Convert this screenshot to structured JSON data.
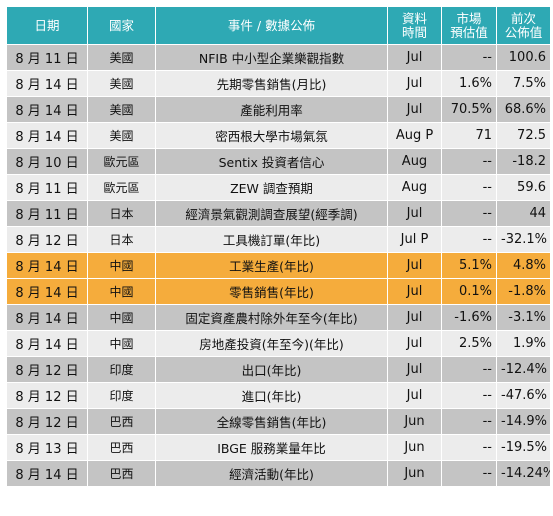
{
  "header": {
    "date": "日期",
    "country": "國家",
    "event": "事件 / 數據公佈",
    "time_l1": "資料",
    "time_l2": "時間",
    "est_l1": "市場",
    "est_l2": "預估值",
    "prev_l1": "前次",
    "prev_l2": "公佈值"
  },
  "colors": {
    "header_bg": "#2ea9b4",
    "row_gray": "#c4c4c4",
    "row_light": "#ececec",
    "row_highlight": "#f5ac3c"
  },
  "rows": [
    {
      "date": "8 月 11 日",
      "country": "美國",
      "event": "NFIB  中小型企業樂觀指數",
      "time": "Jul",
      "estimate": "--",
      "previous": "100.6",
      "style": "gray"
    },
    {
      "date": "8 月 14 日",
      "country": "美國",
      "event": "先期零售銷售(月比)",
      "time": "Jul",
      "estimate": "1.6%",
      "previous": "7.5%",
      "style": "light"
    },
    {
      "date": "8 月 14 日",
      "country": "美國",
      "event": "產能利用率",
      "time": "Jul",
      "estimate": "70.5%",
      "previous": "68.6%",
      "style": "gray"
    },
    {
      "date": "8 月 14 日",
      "country": "美國",
      "event": "密西根大學市場氣氛",
      "time": "Aug P",
      "estimate": "71",
      "previous": "72.5",
      "style": "light"
    },
    {
      "date": "8 月 10 日",
      "country": "歐元區",
      "event": "Sentix 投資者信心",
      "time": "Aug",
      "estimate": "--",
      "previous": "-18.2",
      "style": "gray"
    },
    {
      "date": "8 月 11 日",
      "country": "歐元區",
      "event": "ZEW 調查預期",
      "time": "Aug",
      "estimate": "--",
      "previous": "59.6",
      "style": "light"
    },
    {
      "date": "8 月 11 日",
      "country": "日本",
      "event": "經濟景氣觀測調查展望(經季調)",
      "time": "Jul",
      "estimate": "--",
      "previous": "44",
      "style": "gray"
    },
    {
      "date": "8 月 12 日",
      "country": "日本",
      "event": "工具機訂單(年比)",
      "time": "Jul P",
      "estimate": "--",
      "previous": "-32.1%",
      "style": "light"
    },
    {
      "date": "8 月 14 日",
      "country": "中國",
      "event": "工業生產(年比)",
      "time": "Jul",
      "estimate": "5.1%",
      "previous": "4.8%",
      "style": "hl"
    },
    {
      "date": "8 月 14 日",
      "country": "中國",
      "event": "零售銷售(年比)",
      "time": "Jul",
      "estimate": "0.1%",
      "previous": "-1.8%",
      "style": "hl"
    },
    {
      "date": "8 月 14 日",
      "country": "中國",
      "event": "固定資產農村除外年至今(年比)",
      "time": "Jul",
      "estimate": "-1.6%",
      "previous": "-3.1%",
      "style": "gray"
    },
    {
      "date": "8 月 14 日",
      "country": "中國",
      "event": "房地產投資(年至今)(年比)",
      "time": "Jul",
      "estimate": "2.5%",
      "previous": "1.9%",
      "style": "light"
    },
    {
      "date": "8 月 12 日",
      "country": "印度",
      "event": "出口(年比)",
      "time": "Jul",
      "estimate": "--",
      "previous": "-12.4%",
      "style": "gray"
    },
    {
      "date": "8 月 12 日",
      "country": "印度",
      "event": "進口(年比)",
      "time": "Jul",
      "estimate": "--",
      "previous": "-47.6%",
      "style": "light"
    },
    {
      "date": "8 月 12 日",
      "country": "巴西",
      "event": "全線零售銷售(年比)",
      "time": "Jun",
      "estimate": "--",
      "previous": "-14.9%",
      "style": "gray"
    },
    {
      "date": "8 月 13 日",
      "country": "巴西",
      "event": "IBGE 服務業量年比",
      "time": "Jun",
      "estimate": "--",
      "previous": "-19.5%",
      "style": "light"
    },
    {
      "date": "8 月 14 日",
      "country": "巴西",
      "event": "經濟活動(年比)",
      "time": "Jun",
      "estimate": "--",
      "previous": "-14.24%",
      "style": "gray"
    }
  ]
}
